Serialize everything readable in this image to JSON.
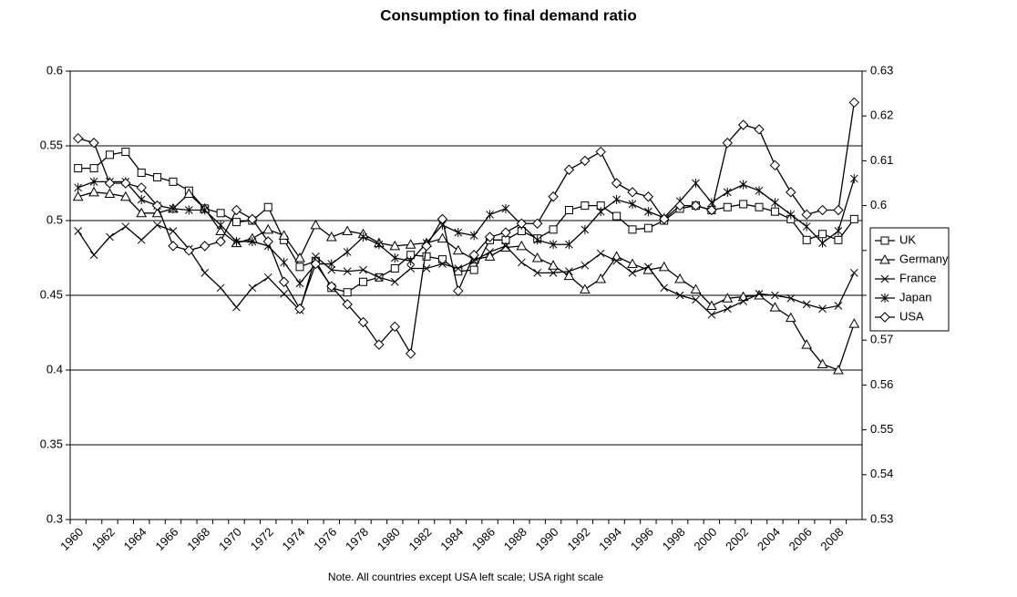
{
  "chart_data": {
    "type": "line",
    "title": "Consumption to final demand ratio",
    "note": "Note. All countries except USA left scale; USA right scale",
    "categories": [
      "1960",
      null,
      "1962",
      null,
      "1964",
      null,
      "1966",
      null,
      "1968",
      null,
      "1970",
      null,
      "1972",
      null,
      "1974",
      null,
      "1976",
      null,
      "1978",
      null,
      "1980",
      null,
      "1982",
      null,
      "1984",
      null,
      "1986",
      null,
      "1988",
      null,
      "1990",
      null,
      "1992",
      null,
      "1994",
      null,
      "1996",
      null,
      "1998",
      null,
      "2000",
      null,
      "2002",
      null,
      "2004",
      null,
      "2006",
      null,
      "2008",
      null
    ],
    "ylim": [
      0.3,
      0.6
    ],
    "yticks": [
      0.3,
      0.35,
      0.4,
      0.45,
      0.5,
      0.55,
      0.6
    ],
    "y2lim": [
      0.53,
      0.63
    ],
    "y2ticks": [
      0.53,
      0.54,
      0.55,
      0.56,
      0.57,
      0.58,
      0.59,
      0.6,
      0.61,
      0.62,
      0.63
    ],
    "grid": true,
    "legend": "right",
    "series": [
      {
        "name": "UK",
        "color": "#000000",
        "marker": "square",
        "values": [
          0.535,
          0.535,
          0.544,
          0.546,
          0.532,
          0.529,
          0.526,
          0.52,
          0.508,
          0.505,
          0.499,
          0.5,
          0.509,
          0.487,
          0.469,
          0.473,
          0.455,
          0.452,
          0.459,
          0.462,
          0.468,
          0.477,
          0.476,
          0.474,
          0.466,
          0.467,
          0.487,
          0.487,
          0.493,
          0.488,
          0.494,
          0.507,
          0.51,
          0.51,
          0.503,
          0.494,
          0.495,
          0.5,
          0.508,
          0.51,
          0.507,
          0.509,
          0.511,
          0.509,
          0.506,
          0.501,
          0.487,
          0.491,
          0.487,
          0.501
        ]
      },
      {
        "name": "Germany",
        "color": "#000000",
        "marker": "triangle",
        "values": [
          0.516,
          0.519,
          0.518,
          0.516,
          0.505,
          0.505,
          0.508,
          0.518,
          0.508,
          0.493,
          0.485,
          0.488,
          0.494,
          0.49,
          0.475,
          0.497,
          0.489,
          0.493,
          0.491,
          0.485,
          0.483,
          0.484,
          0.485,
          0.488,
          0.48,
          0.474,
          0.476,
          0.482,
          0.483,
          0.475,
          0.47,
          0.463,
          0.454,
          0.461,
          0.476,
          0.471,
          0.467,
          0.469,
          0.461,
          0.454,
          0.443,
          0.448,
          0.449,
          0.45,
          0.442,
          0.435,
          0.417,
          0.404,
          0.4,
          0.431
        ]
      },
      {
        "name": "France",
        "color": "#000000",
        "marker": "x",
        "values": [
          0.493,
          0.477,
          0.489,
          0.496,
          0.487,
          0.497,
          0.493,
          0.481,
          0.465,
          0.455,
          0.442,
          0.455,
          0.462,
          0.451,
          0.44,
          0.476,
          0.467,
          0.466,
          0.467,
          0.462,
          0.459,
          0.468,
          0.468,
          0.471,
          0.468,
          0.473,
          0.479,
          0.483,
          0.472,
          0.465,
          0.465,
          0.466,
          0.47,
          0.478,
          0.473,
          0.465,
          0.469,
          0.455,
          0.45,
          0.447,
          0.437,
          0.441,
          0.446,
          0.451,
          0.45,
          0.448,
          0.444,
          0.441,
          0.443,
          0.465
        ]
      },
      {
        "name": "Japan",
        "color": "#000000",
        "marker": "star",
        "values": [
          0.522,
          0.526,
          0.526,
          0.526,
          0.514,
          0.51,
          0.508,
          0.507,
          0.507,
          0.497,
          0.486,
          0.486,
          0.483,
          0.472,
          0.458,
          0.471,
          0.471,
          0.479,
          0.489,
          0.484,
          0.475,
          0.473,
          0.485,
          0.497,
          0.492,
          0.49,
          0.504,
          0.508,
          0.497,
          0.487,
          0.484,
          0.484,
          0.494,
          0.506,
          0.514,
          0.511,
          0.506,
          0.502,
          0.513,
          0.525,
          0.512,
          0.519,
          0.524,
          0.52,
          0.512,
          0.504,
          0.496,
          0.485,
          0.493,
          0.528
        ]
      },
      {
        "name": "USA",
        "color": "#000000",
        "marker": "diamond",
        "axis": "y2",
        "values": [
          0.615,
          0.614,
          0.605,
          0.605,
          0.604,
          0.6,
          0.591,
          0.59,
          0.591,
          0.592,
          0.599,
          0.597,
          0.592,
          0.583,
          0.577,
          0.587,
          0.582,
          0.578,
          0.574,
          0.569,
          0.573,
          0.567,
          0.591,
          0.597,
          0.581,
          0.589,
          0.593,
          0.594,
          0.596,
          0.596,
          0.602,
          0.608,
          0.61,
          0.612,
          0.605,
          0.603,
          0.602,
          0.597,
          0.6,
          0.6,
          0.599,
          0.614,
          0.618,
          0.617,
          0.609,
          0.603,
          0.598,
          0.599,
          0.599,
          0.623
        ]
      }
    ]
  }
}
